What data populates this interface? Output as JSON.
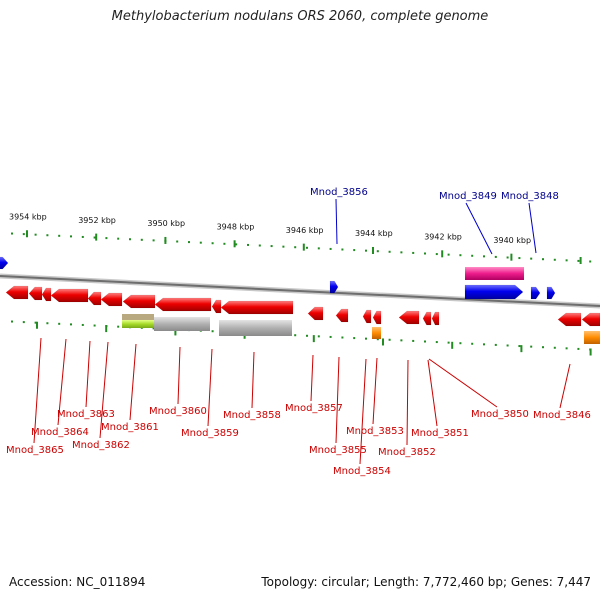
{
  "title": "Methylobacterium nodulans ORS 2060, complete genome",
  "footer": {
    "accession": "Accession: NC_011894",
    "topology": "Topology: circular; Length: 7,772,460 bp; Genes: 7,447"
  },
  "colors": {
    "forward_gene": "#0000ee",
    "reverse_gene": "#ee0000",
    "backbone": "#909090",
    "tick": "#228b22",
    "label_forward": "#00008b",
    "label_reverse": "#cc0000",
    "magenta_feature": "#ee1c8c",
    "lime_feature": "#a6dc2a",
    "orange_feature": "#ff8c00",
    "gray_feature": "#b0b0b0"
  },
  "scale": {
    "unit": "kbp",
    "ticks": [
      {
        "kbp": 3954,
        "label": "3954 kbp"
      },
      {
        "kbp": 3952,
        "label": "3952 kbp"
      },
      {
        "kbp": 3950,
        "label": "3950 kbp"
      },
      {
        "kbp": 3948,
        "label": "3948 kbp"
      },
      {
        "kbp": 3946,
        "label": "3946 kbp"
      },
      {
        "kbp": 3944,
        "label": "3944 kbp"
      },
      {
        "kbp": 3942,
        "label": "3942 kbp"
      },
      {
        "kbp": 3940,
        "label": "3940 kbp"
      }
    ]
  },
  "forward_labels": [
    {
      "id": "Mnod_3856",
      "text": "Mnod_3856"
    },
    {
      "id": "Mnod_3849",
      "text": "Mnod_3849"
    },
    {
      "id": "Mnod_3848",
      "text": "Mnod_3848"
    }
  ],
  "reverse_labels": [
    {
      "id": "Mnod_3865",
      "text": "Mnod_3865"
    },
    {
      "id": "Mnod_3864",
      "text": "Mnod_3864"
    },
    {
      "id": "Mnod_3863",
      "text": "Mnod_3863"
    },
    {
      "id": "Mnod_3862",
      "text": "Mnod_3862"
    },
    {
      "id": "Mnod_3861",
      "text": "Mnod_3861"
    },
    {
      "id": "Mnod_3860",
      "text": "Mnod_3860"
    },
    {
      "id": "Mnod_3859",
      "text": "Mnod_3859"
    },
    {
      "id": "Mnod_3858",
      "text": "Mnod_3858"
    },
    {
      "id": "Mnod_3857",
      "text": "Mnod_3857"
    },
    {
      "id": "Mnod_3855",
      "text": "Mnod_3855"
    },
    {
      "id": "Mnod_3854",
      "text": "Mnod_3854"
    },
    {
      "id": "Mnod_3853",
      "text": "Mnod_3853"
    },
    {
      "id": "Mnod_3852",
      "text": "Mnod_3852"
    },
    {
      "id": "Mnod_3851",
      "text": "Mnod_3851"
    },
    {
      "id": "Mnod_3850",
      "text": "Mnod_3850"
    },
    {
      "id": "Mnod_3846",
      "text": "Mnod_3846"
    }
  ]
}
